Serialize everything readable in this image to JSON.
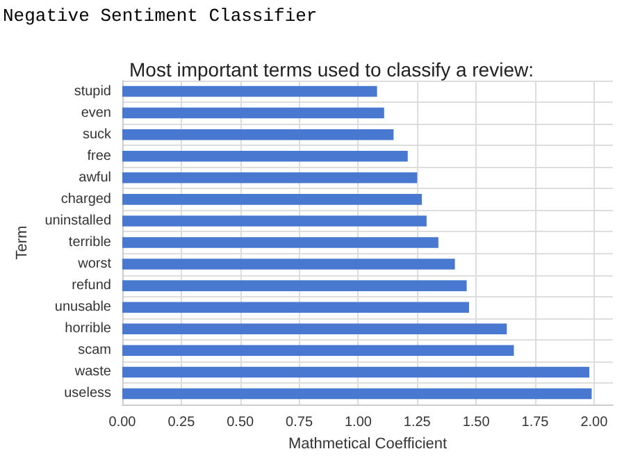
{
  "chart_data": {
    "type": "bar",
    "orientation": "horizontal",
    "title": "Most important terms used to classify a review:",
    "xlabel": "Mathmetical Coefficient",
    "ylabel": "Term",
    "annotations": [
      "Negative Sentiment Classifier"
    ],
    "categories": [
      "stupid",
      "even",
      "suck",
      "free",
      "awful",
      "charged",
      "uninstalled",
      "terrible",
      "worst",
      "refund",
      "unusable",
      "horrible",
      "scam",
      "waste",
      "useless"
    ],
    "values": [
      1.08,
      1.11,
      1.15,
      1.21,
      1.25,
      1.27,
      1.29,
      1.34,
      1.41,
      1.46,
      1.47,
      1.63,
      1.66,
      1.98,
      1.99
    ],
    "color": "#4878d0",
    "xlim": [
      0,
      2.08
    ],
    "xticks": [
      {
        "value": 0,
        "label": "0.00"
      },
      {
        "value": 0.25,
        "label": "0.25"
      },
      {
        "value": 0.5,
        "label": "0.50"
      },
      {
        "value": 0.75,
        "label": "0.75"
      },
      {
        "value": 1,
        "label": "1.00"
      },
      {
        "value": 1.25,
        "label": "1.25"
      },
      {
        "value": 1.5,
        "label": "1.50"
      },
      {
        "value": 1.75,
        "label": "1.75"
      },
      {
        "value": 2,
        "label": "2.00"
      }
    ],
    "grid": true
  }
}
